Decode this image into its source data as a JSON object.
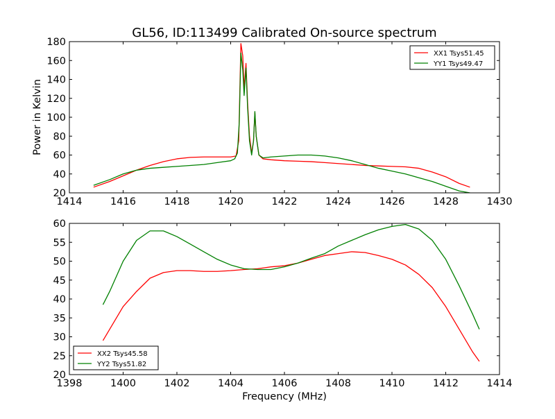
{
  "figure": {
    "title": "GL56, ID:113499 Calibrated On-source spectrum",
    "ylabel": "Power in Kelvin",
    "xlabel": "Frequency (MHz)"
  },
  "chart_data": [
    {
      "type": "line",
      "title": "GL56, ID:113499 Calibrated On-source spectrum",
      "xlabel": "",
      "ylabel": "Power in Kelvin",
      "xlim": [
        1414,
        1430
      ],
      "ylim": [
        20,
        180
      ],
      "xticks": [
        1414,
        1416,
        1418,
        1420,
        1422,
        1424,
        1426,
        1428,
        1430
      ],
      "yticks": [
        20,
        40,
        60,
        80,
        100,
        120,
        140,
        160,
        180
      ],
      "grid": false,
      "legend_position": "top-right",
      "series": [
        {
          "name": "XX1 Tsys51.45",
          "color": "#ff0000",
          "points": [
            [
              1414.9,
              26
            ],
            [
              1415.5,
              32
            ],
            [
              1416.0,
              38
            ],
            [
              1416.5,
              44
            ],
            [
              1417.0,
              49
            ],
            [
              1417.5,
              53
            ],
            [
              1418.0,
              56
            ],
            [
              1418.5,
              57.5
            ],
            [
              1419.0,
              58
            ],
            [
              1419.5,
              58
            ],
            [
              1420.0,
              58
            ],
            [
              1420.2,
              59
            ],
            [
              1420.3,
              75
            ],
            [
              1420.38,
              178
            ],
            [
              1420.45,
              165
            ],
            [
              1420.5,
              130
            ],
            [
              1420.57,
              157
            ],
            [
              1420.63,
              115
            ],
            [
              1420.7,
              80
            ],
            [
              1420.78,
              62
            ],
            [
              1420.85,
              75
            ],
            [
              1420.9,
              105
            ],
            [
              1420.95,
              80
            ],
            [
              1421.05,
              60
            ],
            [
              1421.2,
              56
            ],
            [
              1421.5,
              55
            ],
            [
              1422.0,
              54
            ],
            [
              1422.5,
              53.5
            ],
            [
              1423.0,
              53
            ],
            [
              1423.5,
              52
            ],
            [
              1424.0,
              51
            ],
            [
              1424.5,
              50
            ],
            [
              1425.0,
              49
            ],
            [
              1425.5,
              48.5
            ],
            [
              1426.0,
              48
            ],
            [
              1426.5,
              47.5
            ],
            [
              1427.0,
              46
            ],
            [
              1427.5,
              42
            ],
            [
              1428.0,
              37
            ],
            [
              1428.5,
              30
            ],
            [
              1428.9,
              26
            ]
          ]
        },
        {
          "name": "YY1 Tsys49.47",
          "color": "#008000",
          "points": [
            [
              1414.9,
              28
            ],
            [
              1415.5,
              34
            ],
            [
              1416.0,
              40
            ],
            [
              1416.5,
              44
            ],
            [
              1417.0,
              46
            ],
            [
              1417.5,
              47
            ],
            [
              1418.0,
              48
            ],
            [
              1418.5,
              49
            ],
            [
              1419.0,
              50
            ],
            [
              1419.5,
              52
            ],
            [
              1420.0,
              54
            ],
            [
              1420.15,
              56
            ],
            [
              1420.25,
              62
            ],
            [
              1420.32,
              95
            ],
            [
              1420.38,
              168
            ],
            [
              1420.45,
              150
            ],
            [
              1420.5,
              123
            ],
            [
              1420.57,
              152
            ],
            [
              1420.63,
              110
            ],
            [
              1420.7,
              75
            ],
            [
              1420.78,
              60
            ],
            [
              1420.85,
              75
            ],
            [
              1420.9,
              106
            ],
            [
              1420.95,
              80
            ],
            [
              1421.05,
              60
            ],
            [
              1421.2,
              57
            ],
            [
              1421.5,
              58
            ],
            [
              1422.0,
              59
            ],
            [
              1422.5,
              60
            ],
            [
              1423.0,
              60
            ],
            [
              1423.5,
              59
            ],
            [
              1424.0,
              57
            ],
            [
              1424.5,
              54
            ],
            [
              1425.0,
              50
            ],
            [
              1425.5,
              46
            ],
            [
              1426.0,
              43
            ],
            [
              1426.5,
              40
            ],
            [
              1427.0,
              36
            ],
            [
              1427.5,
              32
            ],
            [
              1428.0,
              27
            ],
            [
              1428.5,
              22
            ],
            [
              1428.9,
              20
            ]
          ]
        }
      ]
    },
    {
      "type": "line",
      "title": "",
      "xlabel": "Frequency (MHz)",
      "ylabel": "",
      "xlim": [
        1398,
        1414
      ],
      "ylim": [
        20,
        60
      ],
      "xticks": [
        1398,
        1400,
        1402,
        1404,
        1406,
        1408,
        1410,
        1412,
        1414
      ],
      "yticks": [
        20,
        25,
        30,
        35,
        40,
        45,
        50,
        55,
        60
      ],
      "grid": false,
      "legend_position": "bottom-left",
      "series": [
        {
          "name": "XX2 Tsys45.58",
          "color": "#ff0000",
          "points": [
            [
              1399.25,
              29
            ],
            [
              1399.5,
              32
            ],
            [
              1400.0,
              38
            ],
            [
              1400.5,
              42
            ],
            [
              1401.0,
              45.5
            ],
            [
              1401.5,
              47
            ],
            [
              1402.0,
              47.5
            ],
            [
              1402.5,
              47.5
            ],
            [
              1403.0,
              47.3
            ],
            [
              1403.5,
              47.3
            ],
            [
              1404.0,
              47.5
            ],
            [
              1404.5,
              47.8
            ],
            [
              1405.0,
              48
            ],
            [
              1405.5,
              48.5
            ],
            [
              1406.0,
              48.8
            ],
            [
              1406.5,
              49.5
            ],
            [
              1407.0,
              50.5
            ],
            [
              1407.5,
              51.5
            ],
            [
              1408.0,
              52
            ],
            [
              1408.5,
              52.5
            ],
            [
              1409.0,
              52.3
            ],
            [
              1409.5,
              51.5
            ],
            [
              1410.0,
              50.5
            ],
            [
              1410.5,
              49
            ],
            [
              1411.0,
              46.5
            ],
            [
              1411.5,
              43
            ],
            [
              1412.0,
              38
            ],
            [
              1412.5,
              32
            ],
            [
              1413.0,
              26
            ],
            [
              1413.25,
              23.5
            ]
          ]
        },
        {
          "name": "YY2 Tsys51.82",
          "color": "#008000",
          "points": [
            [
              1399.25,
              38.5
            ],
            [
              1399.5,
              42
            ],
            [
              1400.0,
              50
            ],
            [
              1400.5,
              55.5
            ],
            [
              1401.0,
              58
            ],
            [
              1401.5,
              58
            ],
            [
              1402.0,
              56.5
            ],
            [
              1402.5,
              54.5
            ],
            [
              1403.0,
              52.5
            ],
            [
              1403.5,
              50.5
            ],
            [
              1404.0,
              49
            ],
            [
              1404.5,
              48
            ],
            [
              1405.0,
              47.8
            ],
            [
              1405.5,
              47.8
            ],
            [
              1406.0,
              48.5
            ],
            [
              1406.5,
              49.5
            ],
            [
              1407.0,
              50.8
            ],
            [
              1407.5,
              52
            ],
            [
              1408.0,
              54
            ],
            [
              1408.5,
              55.5
            ],
            [
              1409.0,
              57
            ],
            [
              1409.5,
              58.3
            ],
            [
              1410.0,
              59.2
            ],
            [
              1410.5,
              59.7
            ],
            [
              1411.0,
              58.5
            ],
            [
              1411.5,
              55.5
            ],
            [
              1412.0,
              50.5
            ],
            [
              1412.5,
              43.5
            ],
            [
              1413.0,
              36
            ],
            [
              1413.25,
              32
            ]
          ]
        }
      ]
    }
  ]
}
